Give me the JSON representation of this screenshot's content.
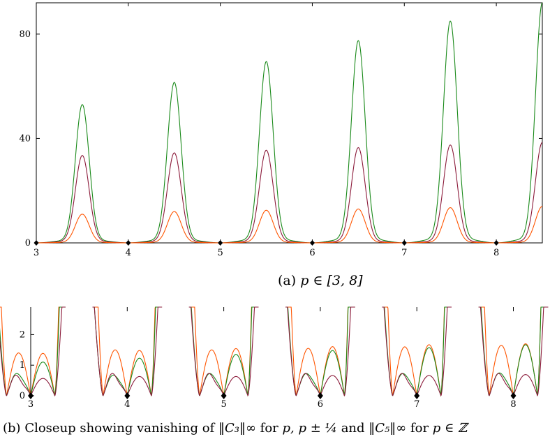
{
  "figure": {
    "caption_a_tag": "(a)",
    "caption_a_math": "p ∈ [3, 8]",
    "caption_b_tag": "(b)",
    "caption_b_text1": "Closeup showing vanishing of ",
    "caption_b_norm3": "‖C₃‖∞",
    "caption_b_text2": " for ",
    "caption_b_set": "p, p ± ¼",
    "caption_b_text3": " and ",
    "caption_b_norm5": "‖C₅‖∞",
    "caption_b_text4": " for ",
    "caption_b_cond": "p ∈ ℤ"
  },
  "chart_data": [
    {
      "type": "line",
      "panel": "a",
      "xlim": [
        3,
        8.5
      ],
      "ylim": [
        0,
        92
      ],
      "x_ticks": [
        3,
        4,
        5,
        6,
        7,
        8
      ],
      "y_ticks": [
        0,
        40,
        80
      ],
      "markers_x": [
        3,
        4,
        5,
        6,
        7,
        8
      ],
      "series": [
        {
          "color": "#1a8a1a",
          "peak_values": [
            53,
            61.5,
            69.5,
            77.5,
            85,
            92
          ]
        },
        {
          "color": "#8b1a3a",
          "peak_values": [
            33.5,
            34.5,
            35.5,
            36.5,
            37.5,
            38.5
          ]
        },
        {
          "color": "#ff5500",
          "peak_values": [
            11,
            12,
            12.5,
            13,
            13.5,
            14
          ]
        }
      ]
    },
    {
      "type": "line",
      "panel": "b",
      "xlim": [
        3,
        8.3
      ],
      "ylim": [
        0,
        2.9
      ],
      "x_ticks": [
        3,
        4,
        5,
        6,
        7,
        8
      ],
      "y_ticks": [
        0,
        1,
        2
      ],
      "markers_x": [
        3,
        4,
        5,
        6,
        7,
        8
      ],
      "zeros_offsets": [
        -0.25,
        0,
        0.25
      ],
      "series": [
        {
          "color": "#ff5500",
          "left_lobe": [
            1.4,
            1.5,
            1.5,
            1.55,
            1.6,
            1.65
          ],
          "right_lobe": [
            2.2,
            2.35,
            2.45,
            2.55,
            2.65,
            2.7
          ]
        },
        {
          "color": "#1a8a1a",
          "left_lobe": [
            0.7,
            0.65,
            0.7,
            0.7,
            0.7,
            0.72
          ],
          "right_lobe": [
            1.75,
            1.95,
            2.15,
            2.35,
            2.5,
            2.65
          ]
        },
        {
          "color": "#8b1a3a",
          "left_lobe": [
            0.6,
            0.65,
            0.65,
            0.65,
            0.65,
            0.65
          ],
          "right_lobe": [
            0.9,
            1.0,
            1.0,
            1.05,
            1.05,
            1.1
          ]
        }
      ]
    }
  ]
}
